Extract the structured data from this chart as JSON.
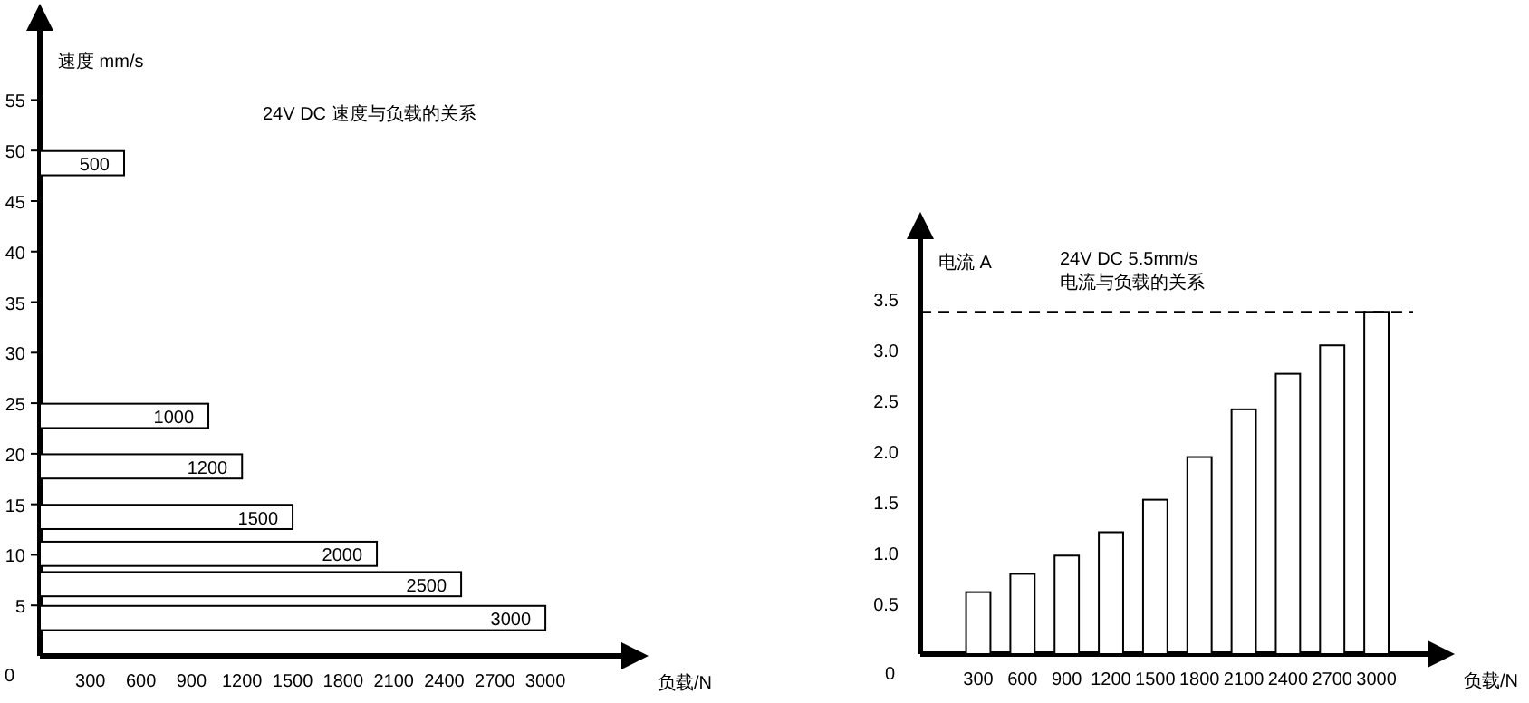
{
  "chart_data": [
    {
      "type": "bar",
      "orientation": "horizontal",
      "title": "24V DC 速度与负载的关系",
      "xlabel": "负载/N",
      "ylabel": "速度 mm/s",
      "x": [
        48.75,
        23.75,
        18.75,
        13.75,
        10.1,
        7.1,
        3.75
      ],
      "values": [
        500,
        1000,
        1200,
        1500,
        2000,
        2500,
        3000
      ],
      "color": "#ffffff",
      "data_labels": true,
      "xlim": [
        0,
        3580
      ],
      "xticks": [
        300,
        600,
        900,
        1200,
        1500,
        1800,
        2100,
        2400,
        2700,
        3000
      ],
      "ylim": [
        0,
        64
      ],
      "yticks": [
        5,
        10,
        15,
        20,
        25,
        30,
        35,
        40,
        45,
        50,
        55
      ],
      "annotations": [
        "0"
      ],
      "grid": false
    },
    {
      "type": "bar",
      "title": "24V DC  5.5mm/s",
      "subtitle": "电流与负载的关系",
      "xlabel": "负载/N",
      "ylabel": "电流 A",
      "categories": [
        "300",
        "600",
        "900",
        "1200",
        "1500",
        "1800",
        "2100",
        "2400",
        "2700",
        "3000"
      ],
      "values": [
        0.61,
        0.79,
        0.97,
        1.2,
        1.52,
        1.94,
        2.41,
        2.76,
        3.04,
        3.37
      ],
      "color": "#ffffff",
      "ylim": [
        0,
        4.3
      ],
      "yticks": [
        0.5,
        {
          "value": 1,
          "label": "1.0"
        },
        1.5,
        {
          "value": 2,
          "label": "2.0"
        },
        2.5,
        {
          "value": 3,
          "label": "3.0"
        },
        3.5
      ],
      "annotations": [
        "0"
      ],
      "ref_lines": [
        {
          "axis": "y",
          "value": 3.37,
          "line_style": "dashed",
          "color": "#000000"
        }
      ],
      "grid": false
    }
  ]
}
